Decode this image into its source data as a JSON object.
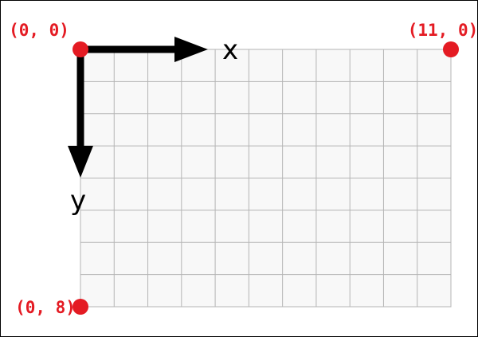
{
  "grid": {
    "columns": 11,
    "rows": 8,
    "fill_color": "#f8f8f8",
    "line_color": "#b5b5b5"
  },
  "axes": {
    "x_label": "x",
    "y_label": "y",
    "arrow_color": "#000000"
  },
  "points": [
    {
      "label": "(0, 0)",
      "x": 0,
      "y": 0
    },
    {
      "label": "(11, 0)",
      "x": 11,
      "y": 0
    },
    {
      "label": "(0, 8)",
      "x": 0,
      "y": 8
    }
  ],
  "point_color": "#e41b23"
}
